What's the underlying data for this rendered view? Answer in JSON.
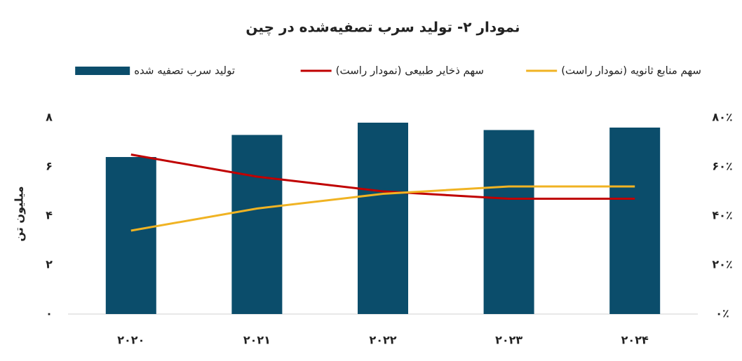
{
  "chart_data": {
    "type": "bar_line",
    "title": "نمودار ۲- تولید سرب تصفیه‌شده در چین",
    "ylabel": "میلیون تن",
    "categories": [
      "۲۰۲۰",
      "۲۰۲۱",
      "۲۰۲۲",
      "۲۰۲۳",
      "۲۰۲۴"
    ],
    "series": [
      {
        "name": "تولید سرب تصفیه شده",
        "type": "bar",
        "color": "#0b4d6b",
        "values": [
          6.4,
          7.3,
          7.8,
          7.5,
          7.6
        ]
      },
      {
        "name": "سهم ذخایر طبیعی (نمودار راست)",
        "type": "line",
        "axis": "y2",
        "color": "#c00000",
        "values": [
          65,
          56,
          50,
          47,
          47
        ]
      },
      {
        "name": "سهم منابع ثانویه (نمودار راست)",
        "type": "line",
        "axis": "y2",
        "color": "#f0b323",
        "values": [
          34,
          43,
          49,
          52,
          52
        ]
      }
    ],
    "ylim": [
      0,
      8
    ],
    "yticks": [
      {
        "value": 0,
        "label": "۰"
      },
      {
        "value": 2,
        "label": "۲"
      },
      {
        "value": 4,
        "label": "۴"
      },
      {
        "value": 6,
        "label": "۶"
      },
      {
        "value": 8,
        "label": "۸"
      }
    ],
    "y2lim": [
      0,
      80
    ],
    "y2ticks": [
      {
        "value": 0,
        "label": "۰٪"
      },
      {
        "value": 20,
        "label": "۲۰٪"
      },
      {
        "value": 40,
        "label": "۴۰٪"
      },
      {
        "value": 60,
        "label": "۶۰٪"
      },
      {
        "value": 80,
        "label": "۸۰٪"
      }
    ],
    "grid": false
  }
}
